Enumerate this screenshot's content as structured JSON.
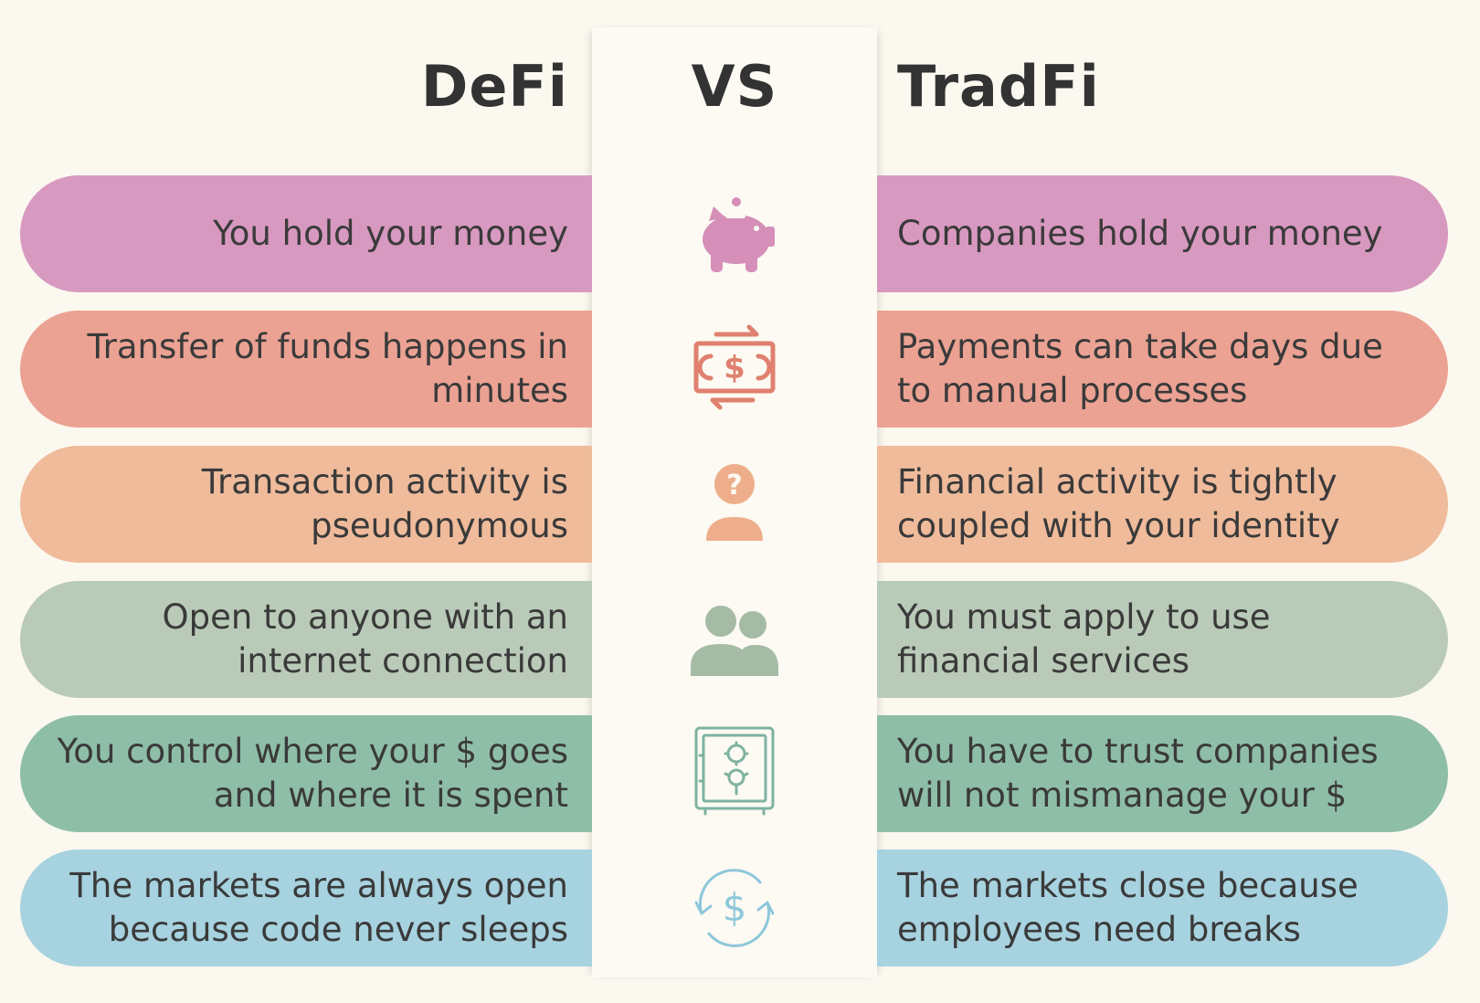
{
  "header": {
    "left_title": "DeFi",
    "center_title": "VS",
    "right_title": "TradFi"
  },
  "colors": {
    "background": "#fbf8ef",
    "row_colors": [
      "#d899c0",
      "#eba293",
      "#efbb9b",
      "#b9cbb8",
      "#8fbea8",
      "#a7d2df"
    ],
    "icon_colors": [
      "#d58fb9",
      "#e0806f",
      "#eeae8c",
      "#a5bba5",
      "#7fb2a1",
      "#8ec7db"
    ]
  },
  "rows": [
    {
      "defi": "You hold your money",
      "tradfi": "Companies hold your money",
      "icon": "piggy-bank-icon"
    },
    {
      "defi": "Transfer of funds happens in minutes",
      "tradfi": "Payments can take days due to manual processes",
      "icon": "money-transfer-icon"
    },
    {
      "defi": "Transaction activity is pseudonymous",
      "tradfi": "Financial activity is tightly coupled with your identity",
      "icon": "anonymous-user-icon"
    },
    {
      "defi": "Open to anyone with an internet connection",
      "tradfi": "You must apply to use financial services",
      "icon": "users-icon"
    },
    {
      "defi": "You control where your $ goes and where it is spent",
      "tradfi": "You have to trust companies will not mismanage your $",
      "icon": "safe-icon"
    },
    {
      "defi": "The markets are always open because code never sleeps",
      "tradfi": "The markets close because employees need breaks",
      "icon": "dollar-cycle-icon"
    }
  ]
}
